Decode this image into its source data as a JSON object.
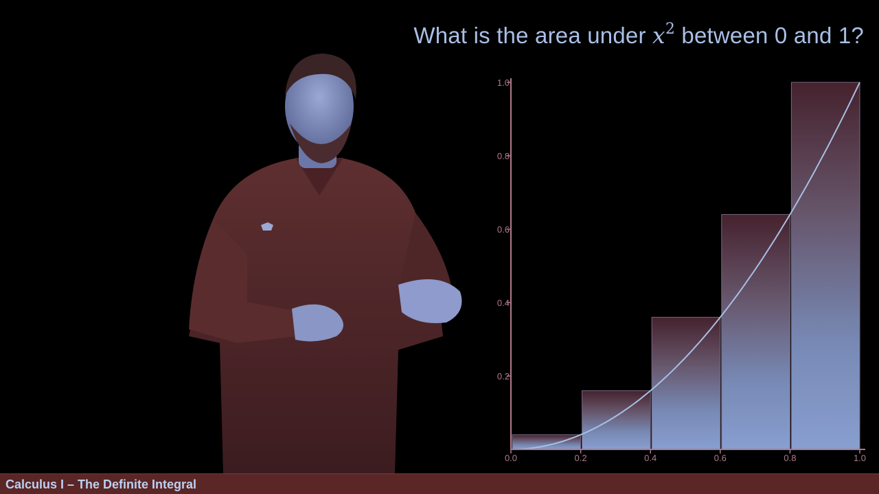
{
  "title": {
    "prefix": "What is the area under ",
    "var": "x",
    "power": "2",
    "suffix": " between 0 and 1?"
  },
  "footer": {
    "course_label": "Calculus I – The Definite Integral"
  },
  "colors": {
    "title": "#a9bfe6",
    "axis": "#b07a8a",
    "curve": "#a9bfe6",
    "bar_top": "#5a2e3a",
    "bar_bottom": "#8ea6d8",
    "footer_bg": "#5a2626",
    "footer_text": "#bcd0f2",
    "shirt": "#5a2d2d",
    "skin": "#8a9ac8"
  },
  "chart_data": {
    "type": "bar",
    "title": "",
    "xlabel": "",
    "ylabel": "",
    "xlim": [
      0,
      1
    ],
    "ylim": [
      0,
      1
    ],
    "x_ticks": [
      0.0,
      0.2,
      0.4,
      0.6,
      0.8,
      1.0
    ],
    "x_tick_labels": [
      "0.0",
      "0.2",
      "0.4",
      "0.6",
      "0.8",
      "1.0"
    ],
    "y_ticks": [
      0.2,
      0.4,
      0.6,
      0.8,
      1.0
    ],
    "y_tick_labels": [
      "0.2",
      "0.4",
      "0.6",
      "0.8",
      "1.0"
    ],
    "bars": [
      {
        "x_start": 0.0,
        "x_end": 0.2,
        "value": 0.04
      },
      {
        "x_start": 0.2,
        "x_end": 0.4,
        "value": 0.16
      },
      {
        "x_start": 0.4,
        "x_end": 0.6,
        "value": 0.36
      },
      {
        "x_start": 0.6,
        "x_end": 0.8,
        "value": 0.64
      },
      {
        "x_start": 0.8,
        "x_end": 1.0,
        "value": 1.0
      }
    ],
    "curve": {
      "function": "x^2",
      "x": [
        0.0,
        0.1,
        0.2,
        0.3,
        0.4,
        0.5,
        0.6,
        0.7,
        0.8,
        0.9,
        1.0
      ],
      "y": [
        0.0,
        0.01,
        0.04,
        0.09,
        0.16,
        0.25,
        0.36,
        0.49,
        0.64,
        0.81,
        1.0
      ]
    },
    "grid": false
  }
}
